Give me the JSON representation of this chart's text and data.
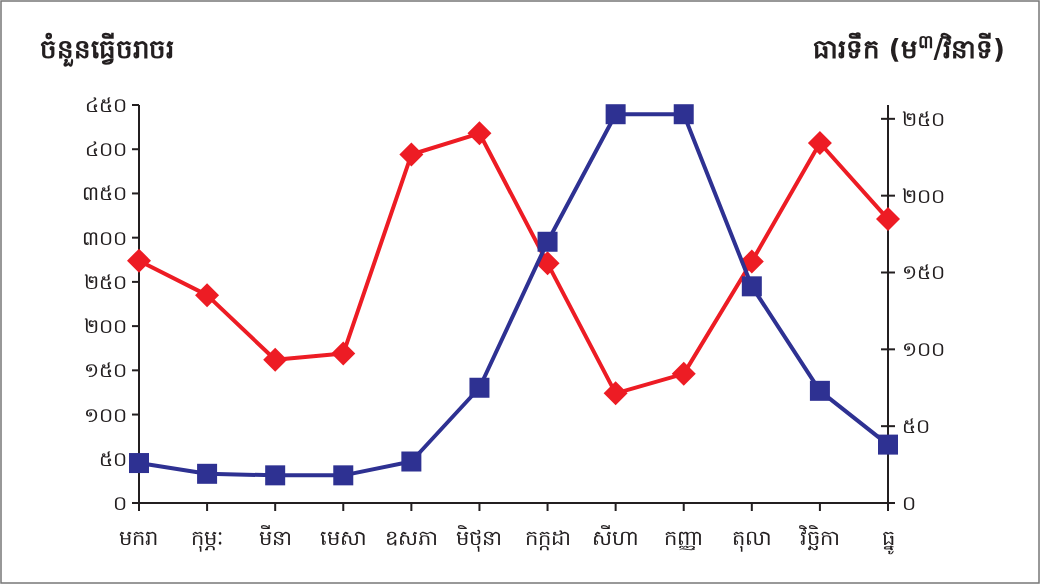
{
  "chart_data": {
    "type": "line",
    "ylabel": "ចំនួនធ្វើចរាចរ",
    "y2label": "ធារទឹក (ម$^{៣}$/វិនាទី)",
    "categories": [
      "មករា",
      "កុម្ភៈ",
      "មីនា",
      "មេសា",
      "ឧសភា",
      "មិថុនា",
      "កក្កដា",
      "សីហា",
      "កញ្ញា",
      "តុលា",
      "វិច្ឆិកា",
      "ធ្នូ"
    ],
    "series": [
      {
        "color": "#ed1c24",
        "marker": "diamond",
        "values": [
          274,
          235,
          162,
          169,
          394,
          418,
          271,
          124,
          146,
          273,
          407,
          321
        ]
      },
      {
        "color": "#2e3192",
        "marker": "square",
        "axis": "y2",
        "values": [
          26,
          19,
          18,
          18,
          27,
          75,
          170,
          253,
          253,
          141,
          73,
          38
        ]
      }
    ],
    "ylim": [
      0,
      450
    ],
    "yticks": [
      {
        "value": 0,
        "label": "០"
      },
      {
        "value": 50,
        "label": "៥០"
      },
      {
        "value": 100,
        "label": "១០០"
      },
      {
        "value": 150,
        "label": "១៥០"
      },
      {
        "value": 200,
        "label": "២០០"
      },
      {
        "value": 250,
        "label": "២៥០"
      },
      {
        "value": 300,
        "label": "៣០០"
      },
      {
        "value": 350,
        "label": "៣៥០"
      },
      {
        "value": 400,
        "label": "៤០០"
      },
      {
        "value": 450,
        "label": "៤៥០"
      }
    ],
    "y2lim": [
      0,
      259
    ],
    "y2ticks": [
      {
        "value": 0,
        "label": "០"
      },
      {
        "value": 50,
        "label": "៥០"
      },
      {
        "value": 100,
        "label": "១០០"
      },
      {
        "value": 150,
        "label": "១៥០"
      },
      {
        "value": 200,
        "label": "២០០"
      },
      {
        "value": 250,
        "label": "២៥០"
      }
    ],
    "grid": false
  }
}
